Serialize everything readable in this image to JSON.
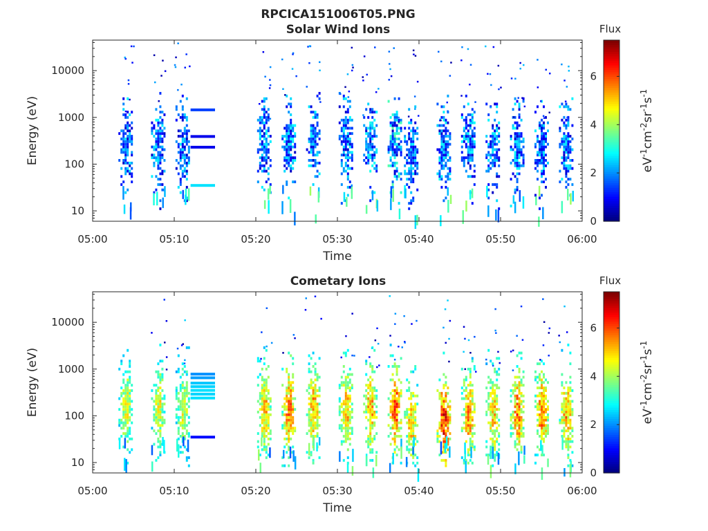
{
  "figure": {
    "title": "RPCICA151006T05.PNG"
  },
  "chart_data": [
    {
      "type": "heatmap",
      "title": "Solar Wind Ions",
      "xlabel": "Time",
      "ylabel": "Energy (eV)",
      "x_tick_labels": [
        "05:00",
        "05:10",
        "05:20",
        "05:30",
        "05:40",
        "05:50",
        "06:00"
      ],
      "y_scale": "log",
      "y_tick_values": [
        10,
        100,
        1000,
        10000
      ],
      "y_tick_labels": [
        "10",
        "100",
        "1000",
        "10000"
      ],
      "xlim": [
        "05:00",
        "06:00"
      ],
      "ylim": [
        6,
        45000
      ],
      "colorbar": {
        "title": "Flux",
        "unit": "eV-1cm-2sr-1s-1",
        "range": [
          0,
          7.5
        ],
        "tick_labels": [
          "0",
          "2",
          "4",
          "6"
        ]
      },
      "data_gap": [
        "05:15",
        "05:19"
      ],
      "ion_bursts": [
        {
          "center": "05:04",
          "peak_flux": 2.3,
          "peak_energy": 250
        },
        {
          "center": "05:08",
          "peak_flux": 2.3,
          "peak_energy": 250
        },
        {
          "center": "05:11",
          "peak_flux": 2.3,
          "peak_energy": 200
        },
        {
          "center": "05:21",
          "peak_flux": 2.4,
          "peak_energy": 300
        },
        {
          "center": "05:24",
          "peak_flux": 2.4,
          "peak_energy": 280
        },
        {
          "center": "05:27",
          "peak_flux": 2.4,
          "peak_energy": 280
        },
        {
          "center": "05:31",
          "peak_flux": 2.4,
          "peak_energy": 280
        },
        {
          "center": "05:34",
          "peak_flux": 2.5,
          "peak_energy": 250
        },
        {
          "center": "05:37",
          "peak_flux": 3.0,
          "peak_energy": 200
        },
        {
          "center": "05:39",
          "peak_flux": 2.3,
          "peak_energy": 150
        },
        {
          "center": "05:43",
          "peak_flux": 2.4,
          "peak_energy": 200
        },
        {
          "center": "05:46",
          "peak_flux": 2.4,
          "peak_energy": 250
        },
        {
          "center": "05:49",
          "peak_flux": 2.3,
          "peak_energy": 200
        },
        {
          "center": "05:52",
          "peak_flux": 2.4,
          "peak_energy": 200
        },
        {
          "center": "05:55",
          "peak_flux": 2.4,
          "peak_energy": 200
        },
        {
          "center": "05:58",
          "peak_flux": 2.4,
          "peak_energy": 200
        }
      ],
      "calibration_lines": [
        {
          "start": "05:12",
          "end": "05:15",
          "energy": 1450,
          "flux": 1.4
        },
        {
          "start": "05:12",
          "end": "05:15",
          "energy": 390,
          "flux": 0.8
        },
        {
          "start": "05:12",
          "end": "05:15",
          "energy": 230,
          "flux": 0.8
        },
        {
          "start": "05:12",
          "end": "05:15",
          "energy": 35,
          "flux": 2.6
        }
      ]
    },
    {
      "type": "heatmap",
      "title": "Cometary Ions",
      "xlabel": "Time",
      "ylabel": "Energy (eV)",
      "x_tick_labels": [
        "05:00",
        "05:10",
        "05:20",
        "05:30",
        "05:40",
        "05:50",
        "06:00"
      ],
      "y_scale": "log",
      "y_tick_values": [
        10,
        100,
        1000,
        10000
      ],
      "y_tick_labels": [
        "10",
        "100",
        "1000",
        "10000"
      ],
      "xlim": [
        "05:00",
        "06:00"
      ],
      "ylim": [
        6,
        45000
      ],
      "colorbar": {
        "title": "Flux",
        "unit": "eV-1cm-2sr-1s-1",
        "range": [
          0,
          7.5
        ],
        "tick_labels": [
          "0",
          "2",
          "4",
          "6"
        ]
      },
      "data_gap": [
        "05:15",
        "05:19"
      ],
      "ion_bursts": [
        {
          "center": "05:04",
          "peak_flux": 4.5,
          "peak_energy": 150
        },
        {
          "center": "05:08",
          "peak_flux": 4.5,
          "peak_energy": 150
        },
        {
          "center": "05:11",
          "peak_flux": 4.4,
          "peak_energy": 120
        },
        {
          "center": "05:21",
          "peak_flux": 5.0,
          "peak_energy": 120
        },
        {
          "center": "05:24",
          "peak_flux": 5.5,
          "peak_energy": 130
        },
        {
          "center": "05:27",
          "peak_flux": 5.2,
          "peak_energy": 130
        },
        {
          "center": "05:31",
          "peak_flux": 5.0,
          "peak_energy": 130
        },
        {
          "center": "05:34",
          "peak_flux": 5.2,
          "peak_energy": 140
        },
        {
          "center": "05:37",
          "peak_flux": 5.8,
          "peak_energy": 130
        },
        {
          "center": "05:39",
          "peak_flux": 5.0,
          "peak_energy": 70
        },
        {
          "center": "05:43",
          "peak_flux": 6.2,
          "peak_energy": 70
        },
        {
          "center": "05:46",
          "peak_flux": 5.3,
          "peak_energy": 90
        },
        {
          "center": "05:49",
          "peak_flux": 5.0,
          "peak_energy": 100
        },
        {
          "center": "05:52",
          "peak_flux": 5.5,
          "peak_energy": 110
        },
        {
          "center": "05:55",
          "peak_flux": 5.5,
          "peak_energy": 110
        },
        {
          "center": "05:58",
          "peak_flux": 5.2,
          "peak_energy": 100
        }
      ],
      "calibration_lines": [
        {
          "start": "05:12",
          "end": "05:15",
          "energy": 780,
          "flux": 2.0
        },
        {
          "start": "05:12",
          "end": "05:15",
          "energy": 650,
          "flux": 2.1
        },
        {
          "start": "05:12",
          "end": "05:15",
          "energy": 500,
          "flux": 2.4
        },
        {
          "start": "05:12",
          "end": "05:15",
          "energy": 420,
          "flux": 2.5
        },
        {
          "start": "05:12",
          "end": "05:15",
          "energy": 350,
          "flux": 2.6
        },
        {
          "start": "05:12",
          "end": "05:15",
          "energy": 290,
          "flux": 2.5
        },
        {
          "start": "05:12",
          "end": "05:15",
          "energy": 240,
          "flux": 2.6
        },
        {
          "start": "05:12",
          "end": "05:15",
          "energy": 35,
          "flux": 1.0
        }
      ]
    }
  ]
}
